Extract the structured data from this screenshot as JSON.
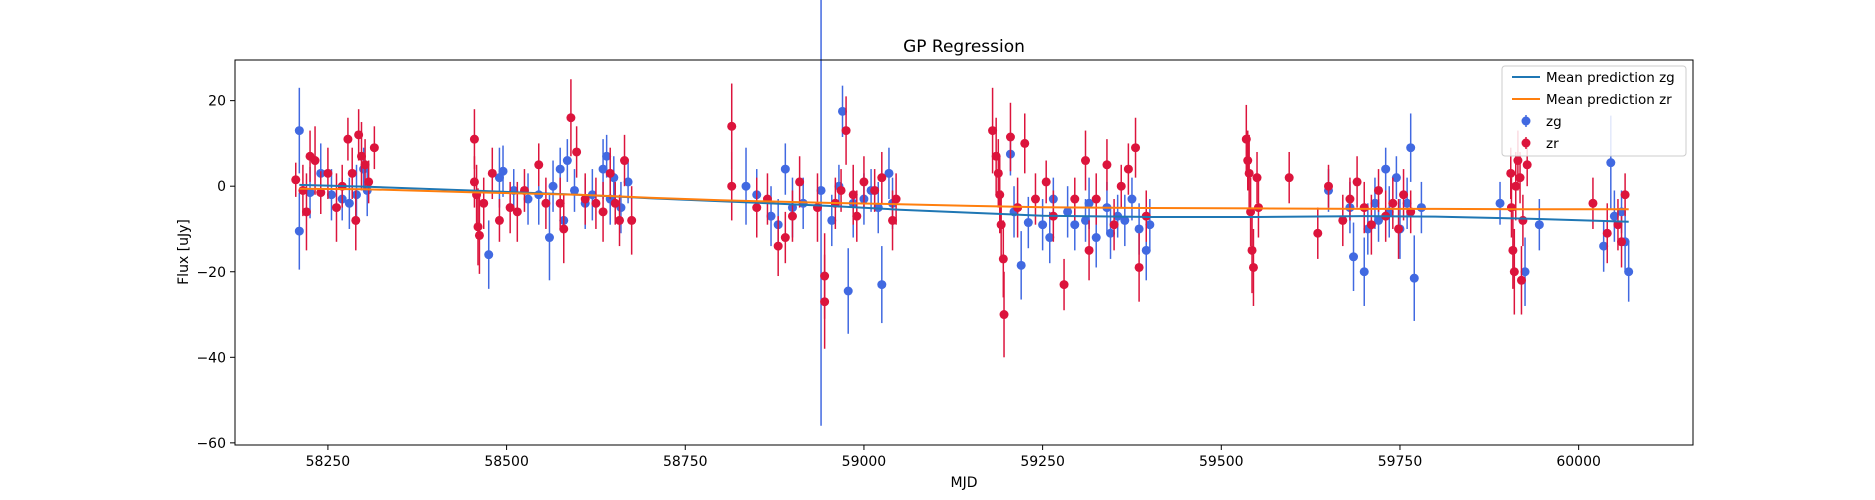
{
  "chart_data": {
    "type": "scatter",
    "title": "GP Regression",
    "xlabel": "MJD",
    "ylabel": "Flux [uJy]",
    "xlim": [
      58120,
      60160
    ],
    "ylim": [
      -60.5,
      29.5
    ],
    "xticks": [
      58250,
      58500,
      58750,
      59000,
      59250,
      59500,
      59750,
      60000
    ],
    "yticks": [
      -60,
      -40,
      -20,
      0,
      20
    ],
    "grid": false,
    "legend_position": "top-right",
    "colors": {
      "zg": "#4169e1",
      "zr": "#dc143c",
      "mean_zg": "#1f77b4",
      "mean_zr": "#ff7f0e"
    },
    "legend": [
      {
        "label": "Mean prediction zg",
        "kind": "line",
        "series": "mean_zg"
      },
      {
        "label": "Mean prediction zr",
        "kind": "line",
        "series": "mean_zr"
      },
      {
        "label": "zg",
        "kind": "errorbar",
        "series": "zg"
      },
      {
        "label": "zr",
        "kind": "errorbar",
        "series": "zr"
      }
    ],
    "lines": [
      {
        "name": "Mean prediction zg",
        "key": "mean_zg",
        "x": [
          58210,
          58300,
          58450,
          58600,
          58700,
          58800,
          58950,
          59050,
          59150,
          59250,
          59400,
          59550,
          59700,
          59800,
          59950,
          60070
        ],
        "y": [
          0.3,
          -0.1,
          -1.0,
          -2.0,
          -2.8,
          -3.5,
          -4.6,
          -5.5,
          -6.2,
          -6.9,
          -7.2,
          -7.2,
          -7.0,
          -7.1,
          -7.7,
          -8.3
        ]
      },
      {
        "name": "Mean prediction zr",
        "key": "mean_zr",
        "x": [
          58210,
          58300,
          58450,
          58600,
          58700,
          58800,
          58950,
          59050,
          59150,
          59250,
          59400,
          59550,
          59700,
          59800,
          59950,
          60070
        ],
        "y": [
          -0.6,
          -0.7,
          -1.4,
          -2.0,
          -2.7,
          -3.3,
          -3.9,
          -4.2,
          -4.6,
          -4.9,
          -5.1,
          -5.2,
          -5.3,
          -5.3,
          -5.4,
          -5.4
        ]
      }
    ],
    "series": [
      {
        "name": "zg",
        "key": "zg",
        "points": [
          [
            58210,
            13,
            10
          ],
          [
            58210,
            -10.5,
            9
          ],
          [
            58225,
            -1.5,
            6
          ],
          [
            58240,
            3,
            7
          ],
          [
            58255,
            -2,
            6
          ],
          [
            58270,
            -3,
            5
          ],
          [
            58280,
            -4,
            6
          ],
          [
            58290,
            -2,
            7
          ],
          [
            58300,
            4,
            5
          ],
          [
            58305,
            -1,
            6
          ],
          [
            58475,
            -16,
            8
          ],
          [
            58490,
            2,
            7
          ],
          [
            58495,
            3.5,
            6
          ],
          [
            58510,
            -1,
            5
          ],
          [
            58530,
            -3,
            6
          ],
          [
            58545,
            -2,
            7
          ],
          [
            58560,
            -12,
            10
          ],
          [
            58565,
            0,
            6
          ],
          [
            58575,
            4,
            5
          ],
          [
            58580,
            -8,
            6
          ],
          [
            58585,
            6,
            5
          ],
          [
            58595,
            -1,
            5
          ],
          [
            58610,
            -4,
            6
          ],
          [
            58620,
            -2,
            6
          ],
          [
            58635,
            4,
            7
          ],
          [
            58640,
            7,
            5
          ],
          [
            58645,
            -3,
            6
          ],
          [
            58650,
            2,
            5
          ],
          [
            58660,
            -5,
            6
          ],
          [
            58670,
            1,
            5
          ],
          [
            58835,
            0,
            9
          ],
          [
            58850,
            -2,
            6
          ],
          [
            58870,
            -7,
            7
          ],
          [
            58880,
            -9,
            6
          ],
          [
            58890,
            4,
            6
          ],
          [
            58900,
            -5,
            7
          ],
          [
            58915,
            -4,
            6
          ],
          [
            58940,
            -1,
            55
          ],
          [
            58955,
            -8,
            6
          ],
          [
            58965,
            0,
            5
          ],
          [
            58970,
            17.5,
            6
          ],
          [
            58978,
            -24.5,
            10
          ],
          [
            58985,
            -4,
            8
          ],
          [
            59000,
            -3,
            6
          ],
          [
            59010,
            -1,
            5
          ],
          [
            59020,
            -5,
            6
          ],
          [
            59025,
            -23,
            9
          ],
          [
            59035,
            3,
            6
          ],
          [
            59040,
            -4,
            6
          ],
          [
            59205,
            7.5,
            5
          ],
          [
            59210,
            -6,
            6
          ],
          [
            59220,
            -18.5,
            8
          ],
          [
            59230,
            -8.5,
            6
          ],
          [
            59250,
            -9,
            6
          ],
          [
            59260,
            -12,
            6
          ],
          [
            59265,
            -3,
            5
          ],
          [
            59285,
            -6,
            6
          ],
          [
            59295,
            -9,
            6
          ],
          [
            59310,
            -8,
            5
          ],
          [
            59315,
            -4,
            6
          ],
          [
            59325,
            -12,
            7
          ],
          [
            59340,
            -5,
            6
          ],
          [
            59345,
            -11,
            6
          ],
          [
            59355,
            -7,
            5
          ],
          [
            59365,
            -8,
            6
          ],
          [
            59375,
            -3,
            5
          ],
          [
            59385,
            -10,
            6
          ],
          [
            59395,
            -15,
            7
          ],
          [
            59400,
            -9,
            6
          ],
          [
            59650,
            -1,
            5
          ],
          [
            59680,
            -5,
            6
          ],
          [
            59685,
            -16.5,
            8
          ],
          [
            59700,
            -20,
            8
          ],
          [
            59705,
            -10,
            6
          ],
          [
            59715,
            -4,
            6
          ],
          [
            59720,
            -8,
            5
          ],
          [
            59730,
            4,
            5
          ],
          [
            59735,
            -6,
            6
          ],
          [
            59745,
            2,
            5
          ],
          [
            59750,
            -10,
            7
          ],
          [
            59760,
            -4,
            6
          ],
          [
            59765,
            9,
            8
          ],
          [
            59770,
            -21.5,
            10
          ],
          [
            59780,
            -5,
            6
          ],
          [
            59890,
            -4,
            5
          ],
          [
            59925,
            -20,
            8
          ],
          [
            59945,
            -9,
            6
          ],
          [
            60035,
            -14,
            6
          ],
          [
            60045,
            5.5,
            11
          ],
          [
            60050,
            -7,
            6
          ],
          [
            60060,
            -6,
            5
          ],
          [
            60065,
            -13,
            7
          ],
          [
            60070,
            -20,
            7
          ]
        ]
      },
      {
        "name": "zr",
        "key": "zr",
        "points": [
          [
            58205,
            1.5,
            4
          ],
          [
            58215,
            -1,
            6
          ],
          [
            58220,
            -6,
            9
          ],
          [
            58225,
            7,
            6
          ],
          [
            58232,
            6,
            8
          ],
          [
            58240,
            -1.5,
            5
          ],
          [
            58250,
            3,
            6
          ],
          [
            58262,
            -5,
            8
          ],
          [
            58270,
            0,
            5
          ],
          [
            58278,
            11,
            5
          ],
          [
            58284,
            3,
            6
          ],
          [
            58289,
            -8,
            7
          ],
          [
            58293,
            12,
            6
          ],
          [
            58297,
            7,
            8
          ],
          [
            58302,
            5,
            6
          ],
          [
            58307,
            1,
            5
          ],
          [
            58315,
            9,
            5
          ],
          [
            58455,
            11,
            7
          ],
          [
            58455,
            1,
            6
          ],
          [
            58458,
            -2,
            7
          ],
          [
            58460,
            -9.5,
            9
          ],
          [
            58462,
            -11.5,
            9
          ],
          [
            58468,
            -4,
            6
          ],
          [
            58480,
            3,
            6
          ],
          [
            58490,
            -8,
            5
          ],
          [
            58505,
            -5,
            6
          ],
          [
            58515,
            -6,
            7
          ],
          [
            58525,
            -1,
            5
          ],
          [
            58545,
            5,
            5
          ],
          [
            58555,
            -4,
            6
          ],
          [
            58575,
            -4,
            6
          ],
          [
            58580,
            -10,
            8
          ],
          [
            58590,
            16,
            9
          ],
          [
            58598,
            8,
            6
          ],
          [
            58610,
            -3,
            6
          ],
          [
            58625,
            -4,
            6
          ],
          [
            58635,
            -6,
            7
          ],
          [
            58645,
            3,
            6
          ],
          [
            58652,
            -4,
            5
          ],
          [
            58658,
            -8,
            6
          ],
          [
            58665,
            6,
            6
          ],
          [
            58675,
            -8,
            8
          ],
          [
            58815,
            14,
            10
          ],
          [
            58815,
            0,
            8
          ],
          [
            58850,
            -5,
            7
          ],
          [
            58865,
            -3,
            6
          ],
          [
            58880,
            -14,
            7
          ],
          [
            58890,
            -12,
            6
          ],
          [
            58900,
            -7,
            6
          ],
          [
            58910,
            1,
            6
          ],
          [
            58935,
            -5,
            8
          ],
          [
            58945,
            -21,
            10
          ],
          [
            58945,
            -27,
            11
          ],
          [
            58960,
            -4,
            6
          ],
          [
            58968,
            -1,
            5
          ],
          [
            58975,
            13,
            8
          ],
          [
            58985,
            -2,
            7
          ],
          [
            58990,
            -7,
            6
          ],
          [
            59000,
            1,
            6
          ],
          [
            59015,
            -1,
            5
          ],
          [
            59025,
            2,
            6
          ],
          [
            59040,
            -8,
            7
          ],
          [
            59045,
            -3,
            6
          ],
          [
            59180,
            13,
            10
          ],
          [
            59185,
            7,
            9
          ],
          [
            59188,
            3,
            8
          ],
          [
            59190,
            -2,
            9
          ],
          [
            59192,
            -9,
            8
          ],
          [
            59195,
            -17,
            9
          ],
          [
            59196,
            -30,
            10
          ],
          [
            59205,
            11.5,
            8
          ],
          [
            59215,
            -5,
            7
          ],
          [
            59225,
            10,
            7
          ],
          [
            59240,
            -3,
            6
          ],
          [
            59255,
            1,
            5
          ],
          [
            59265,
            -7,
            6
          ],
          [
            59280,
            -23,
            6
          ],
          [
            59295,
            -3,
            5
          ],
          [
            59310,
            6,
            7
          ],
          [
            59315,
            -15,
            7
          ],
          [
            59325,
            -3,
            6
          ],
          [
            59340,
            5,
            6
          ],
          [
            59350,
            -9,
            6
          ],
          [
            59360,
            0,
            5
          ],
          [
            59370,
            4,
            6
          ],
          [
            59380,
            9,
            7
          ],
          [
            59385,
            -19,
            8
          ],
          [
            59395,
            -7,
            6
          ],
          [
            59535,
            11,
            8
          ],
          [
            59537,
            6,
            7
          ],
          [
            59539,
            3,
            9
          ],
          [
            59541,
            -6,
            8
          ],
          [
            59543,
            -15,
            10
          ],
          [
            59545,
            -19,
            9
          ],
          [
            59550,
            2,
            6
          ],
          [
            59552,
            -5,
            7
          ],
          [
            59595,
            2,
            6
          ],
          [
            59635,
            -11,
            6
          ],
          [
            59650,
            0,
            5
          ],
          [
            59670,
            -8,
            6
          ],
          [
            59680,
            -3,
            5
          ],
          [
            59690,
            1,
            6
          ],
          [
            59700,
            -5,
            6
          ],
          [
            59710,
            -9,
            7
          ],
          [
            59720,
            -1,
            5
          ],
          [
            59730,
            -7,
            6
          ],
          [
            59740,
            -4,
            6
          ],
          [
            59748,
            -10,
            7
          ],
          [
            59755,
            -2,
            6
          ],
          [
            59765,
            -6,
            5
          ],
          [
            59905,
            3,
            6
          ],
          [
            59906,
            -5,
            7
          ],
          [
            59908,
            -15,
            9
          ],
          [
            59910,
            -20,
            10
          ],
          [
            59912,
            0,
            8
          ],
          [
            59915,
            6,
            7
          ],
          [
            59918,
            2,
            6
          ],
          [
            59920,
            -22,
            8
          ],
          [
            59922,
            -8,
            6
          ],
          [
            59928,
            5,
            5
          ],
          [
            60020,
            -4,
            6
          ],
          [
            60040,
            -11,
            7
          ],
          [
            60055,
            -9,
            6
          ],
          [
            60060,
            -13,
            6
          ],
          [
            60065,
            -2,
            5
          ]
        ]
      }
    ]
  }
}
